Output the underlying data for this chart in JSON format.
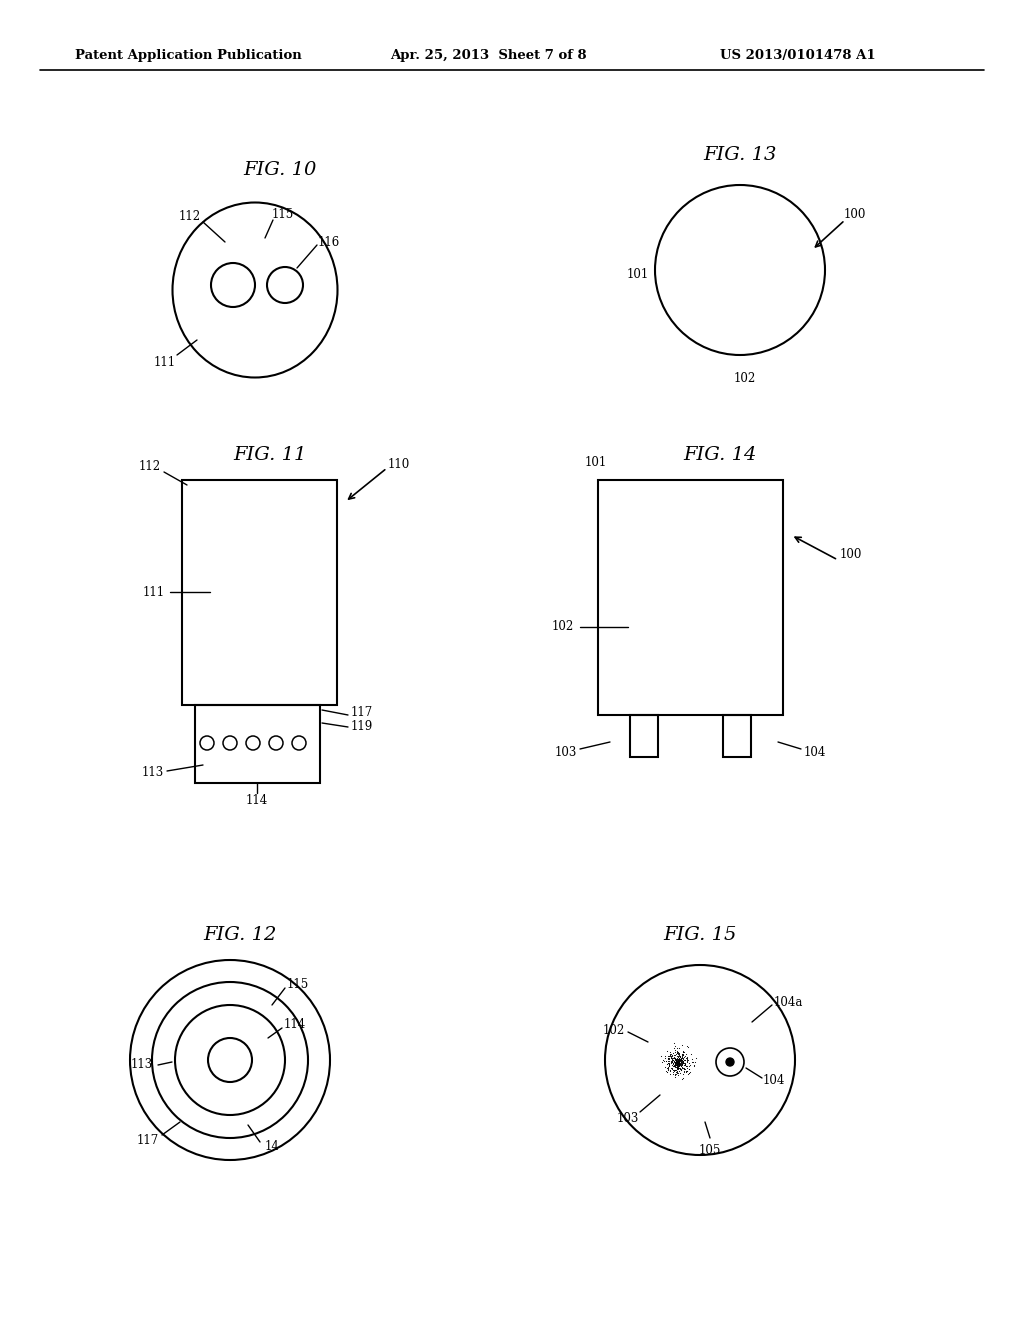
{
  "header_left": "Patent Application Publication",
  "header_mid": "Apr. 25, 2013  Sheet 7 of 8",
  "header_right": "US 2013/0101478 A1",
  "bg_color": "#ffffff",
  "line_color": "#000000",
  "fig_label_size": 14,
  "annotation_size": 8.5
}
